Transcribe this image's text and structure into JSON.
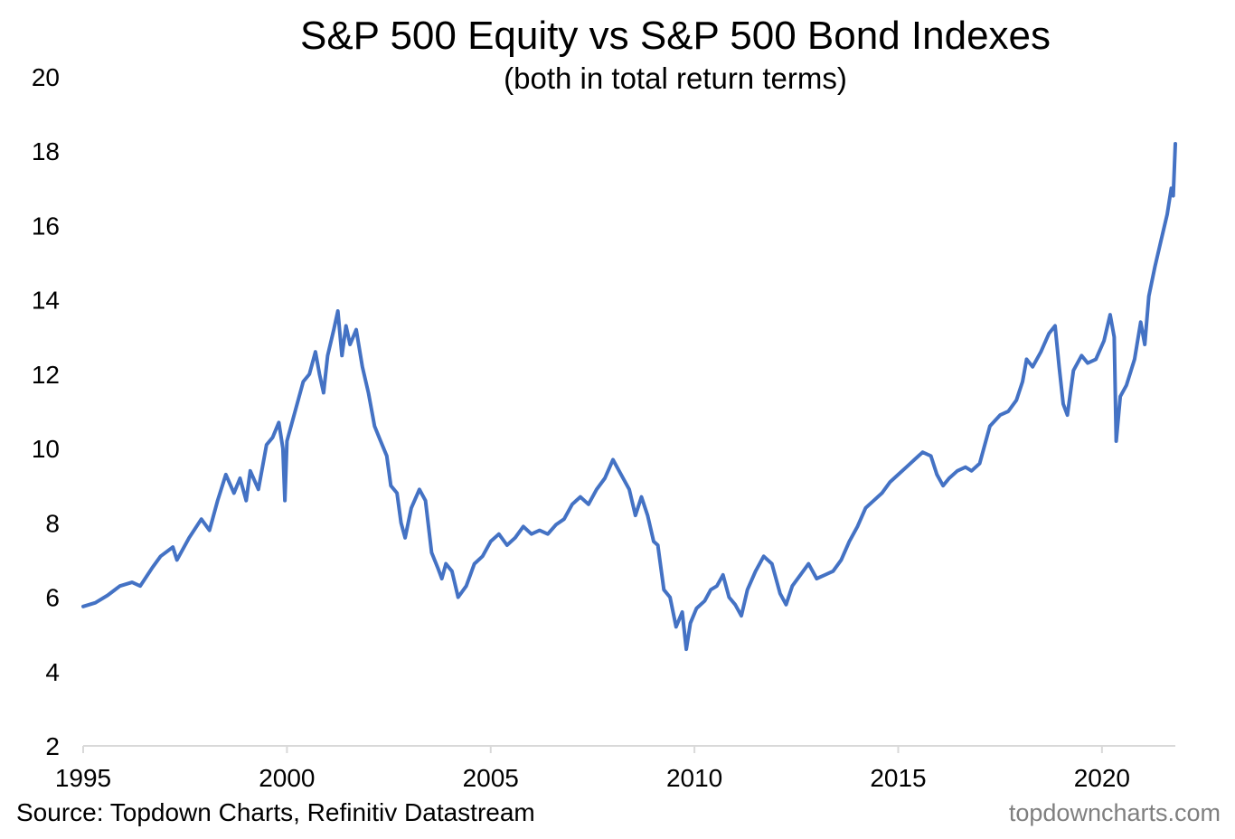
{
  "chart_data": {
    "type": "line",
    "title": "S&P 500 Equity vs S&P 500 Bond Indexes",
    "subtitle": "(both in total return terms)",
    "source": "Source: Topdown Charts, Refinitiv Datastream",
    "credit": "topdowncharts.com",
    "xlim": [
      1995,
      2021.8
    ],
    "ylim": [
      2,
      20
    ],
    "xticks": [
      {
        "value": 1995,
        "label": "1995"
      },
      {
        "value": 2000,
        "label": "2000"
      },
      {
        "value": 2005,
        "label": "2005"
      },
      {
        "value": 2010,
        "label": "2010"
      },
      {
        "value": 2015,
        "label": "2015"
      },
      {
        "value": 2020,
        "label": "2020"
      }
    ],
    "yticks": [
      {
        "value": 2,
        "label": "2"
      },
      {
        "value": 4,
        "label": "4"
      },
      {
        "value": 6,
        "label": "6"
      },
      {
        "value": 8,
        "label": "8"
      },
      {
        "value": 10,
        "label": "10"
      },
      {
        "value": 12,
        "label": "12"
      },
      {
        "value": 14,
        "label": "14"
      },
      {
        "value": 16,
        "label": "16"
      },
      {
        "value": 18,
        "label": "18"
      },
      {
        "value": 20,
        "label": "20"
      }
    ],
    "grid": false,
    "legend": "none",
    "line_color": "#4472C4",
    "axis_color": "#d9d9d9",
    "series": [
      {
        "values": [
          [
            1995.0,
            5.75
          ],
          [
            1995.3,
            5.85
          ],
          [
            1995.6,
            6.05
          ],
          [
            1995.9,
            6.3
          ],
          [
            1996.2,
            6.4
          ],
          [
            1996.4,
            6.3
          ],
          [
            1996.7,
            6.8
          ],
          [
            1996.9,
            7.1
          ],
          [
            1997.2,
            7.35
          ],
          [
            1997.3,
            7.0
          ],
          [
            1997.6,
            7.6
          ],
          [
            1997.9,
            8.1
          ],
          [
            1998.1,
            7.8
          ],
          [
            1998.3,
            8.6
          ],
          [
            1998.5,
            9.3
          ],
          [
            1998.7,
            8.8
          ],
          [
            1998.85,
            9.2
          ],
          [
            1999.0,
            8.6
          ],
          [
            1999.1,
            9.4
          ],
          [
            1999.3,
            8.9
          ],
          [
            1999.5,
            10.1
          ],
          [
            1999.65,
            10.3
          ],
          [
            1999.8,
            10.7
          ],
          [
            1999.9,
            10.0
          ],
          [
            1999.95,
            8.6
          ],
          [
            2000.0,
            10.2
          ],
          [
            2000.2,
            11.0
          ],
          [
            2000.4,
            11.8
          ],
          [
            2000.55,
            12.0
          ],
          [
            2000.7,
            12.6
          ],
          [
            2000.8,
            12.0
          ],
          [
            2000.9,
            11.5
          ],
          [
            2001.0,
            12.5
          ],
          [
            2001.15,
            13.2
          ],
          [
            2001.25,
            13.7
          ],
          [
            2001.35,
            12.5
          ],
          [
            2001.45,
            13.3
          ],
          [
            2001.55,
            12.8
          ],
          [
            2001.7,
            13.2
          ],
          [
            2001.85,
            12.2
          ],
          [
            2002.0,
            11.5
          ],
          [
            2002.15,
            10.6
          ],
          [
            2002.3,
            10.2
          ],
          [
            2002.45,
            9.8
          ],
          [
            2002.55,
            9.0
          ],
          [
            2002.7,
            8.8
          ],
          [
            2002.8,
            8.0
          ],
          [
            2002.9,
            7.6
          ],
          [
            2003.05,
            8.4
          ],
          [
            2003.25,
            8.9
          ],
          [
            2003.4,
            8.6
          ],
          [
            2003.55,
            7.2
          ],
          [
            2003.7,
            6.8
          ],
          [
            2003.8,
            6.5
          ],
          [
            2003.9,
            6.9
          ],
          [
            2004.05,
            6.7
          ],
          [
            2004.2,
            6.0
          ],
          [
            2004.4,
            6.3
          ],
          [
            2004.6,
            6.9
          ],
          [
            2004.8,
            7.1
          ],
          [
            2005.0,
            7.5
          ],
          [
            2005.2,
            7.7
          ],
          [
            2005.4,
            7.4
          ],
          [
            2005.6,
            7.6
          ],
          [
            2005.8,
            7.9
          ],
          [
            2006.0,
            7.7
          ],
          [
            2006.2,
            7.8
          ],
          [
            2006.4,
            7.7
          ],
          [
            2006.6,
            7.95
          ],
          [
            2006.8,
            8.1
          ],
          [
            2007.0,
            8.5
          ],
          [
            2007.2,
            8.7
          ],
          [
            2007.4,
            8.5
          ],
          [
            2007.6,
            8.9
          ],
          [
            2007.8,
            9.2
          ],
          [
            2008.0,
            9.7
          ],
          [
            2008.2,
            9.3
          ],
          [
            2008.4,
            8.9
          ],
          [
            2008.55,
            8.2
          ],
          [
            2008.7,
            8.7
          ],
          [
            2008.85,
            8.2
          ],
          [
            2009.0,
            7.5
          ],
          [
            2009.1,
            7.4
          ],
          [
            2009.25,
            6.2
          ],
          [
            2009.4,
            6.0
          ],
          [
            2009.55,
            5.2
          ],
          [
            2009.7,
            5.6
          ],
          [
            2009.8,
            4.6
          ],
          [
            2009.9,
            5.3
          ],
          [
            2010.05,
            5.7
          ],
          [
            2010.25,
            5.9
          ],
          [
            2010.4,
            6.2
          ],
          [
            2010.55,
            6.3
          ],
          [
            2010.7,
            6.6
          ],
          [
            2010.85,
            6.0
          ],
          [
            2011.0,
            5.8
          ],
          [
            2011.15,
            5.5
          ],
          [
            2011.3,
            6.2
          ],
          [
            2011.5,
            6.7
          ],
          [
            2011.7,
            7.1
          ],
          [
            2011.9,
            6.9
          ],
          [
            2012.0,
            6.5
          ],
          [
            2012.1,
            6.1
          ],
          [
            2012.25,
            5.8
          ],
          [
            2012.4,
            6.3
          ],
          [
            2012.6,
            6.6
          ],
          [
            2012.8,
            6.9
          ],
          [
            2013.0,
            6.5
          ],
          [
            2013.2,
            6.6
          ],
          [
            2013.4,
            6.7
          ],
          [
            2013.6,
            7.0
          ],
          [
            2013.8,
            7.5
          ],
          [
            2014.0,
            7.9
          ],
          [
            2014.2,
            8.4
          ],
          [
            2014.4,
            8.6
          ],
          [
            2014.6,
            8.8
          ],
          [
            2014.8,
            9.1
          ],
          [
            2015.0,
            9.3
          ],
          [
            2015.2,
            9.5
          ],
          [
            2015.4,
            9.7
          ],
          [
            2015.6,
            9.9
          ],
          [
            2015.8,
            9.8
          ],
          [
            2015.95,
            9.3
          ],
          [
            2016.1,
            9.0
          ],
          [
            2016.25,
            9.2
          ],
          [
            2016.45,
            9.4
          ],
          [
            2016.65,
            9.5
          ],
          [
            2016.8,
            9.4
          ],
          [
            2017.0,
            9.6
          ],
          [
            2017.25,
            10.6
          ],
          [
            2017.5,
            10.9
          ],
          [
            2017.7,
            11.0
          ],
          [
            2017.9,
            11.3
          ],
          [
            2018.05,
            11.8
          ],
          [
            2018.15,
            12.4
          ],
          [
            2018.3,
            12.2
          ],
          [
            2018.5,
            12.6
          ],
          [
            2018.7,
            13.1
          ],
          [
            2018.85,
            13.3
          ],
          [
            2018.95,
            12.2
          ],
          [
            2019.05,
            11.2
          ],
          [
            2019.15,
            10.9
          ],
          [
            2019.3,
            12.1
          ],
          [
            2019.5,
            12.5
          ],
          [
            2019.65,
            12.3
          ],
          [
            2019.85,
            12.4
          ],
          [
            2020.05,
            12.9
          ],
          [
            2020.2,
            13.6
          ],
          [
            2020.3,
            13.0
          ],
          [
            2020.35,
            10.2
          ],
          [
            2020.45,
            11.4
          ],
          [
            2020.6,
            11.7
          ],
          [
            2020.8,
            12.4
          ],
          [
            2020.95,
            13.4
          ],
          [
            2021.05,
            12.8
          ],
          [
            2021.15,
            14.1
          ],
          [
            2021.3,
            14.9
          ],
          [
            2021.45,
            15.6
          ],
          [
            2021.6,
            16.3
          ],
          [
            2021.7,
            17.0
          ],
          [
            2021.75,
            16.8
          ],
          [
            2021.8,
            18.2
          ]
        ]
      }
    ]
  }
}
